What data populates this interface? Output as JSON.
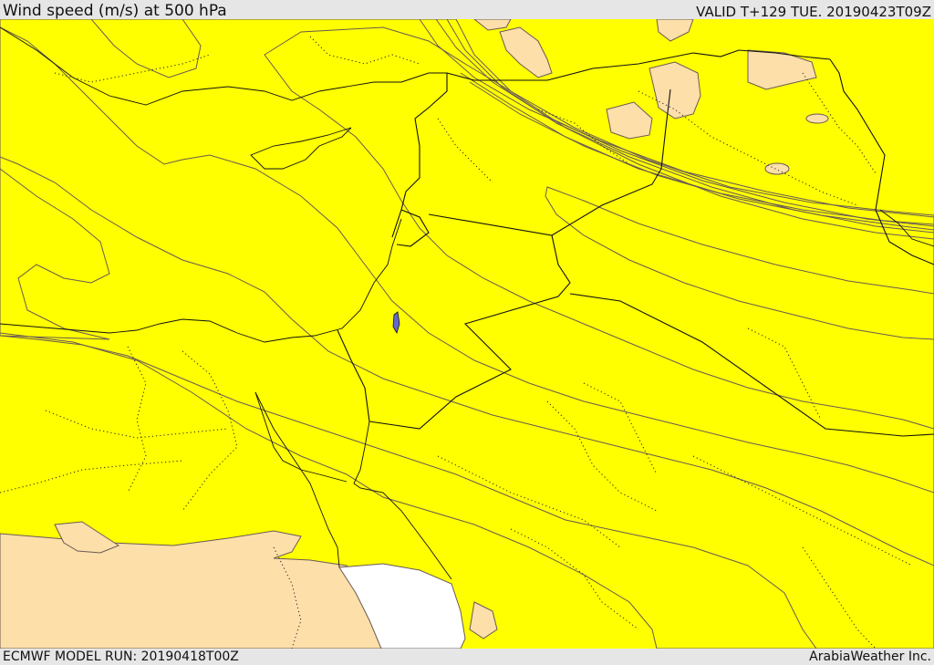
{
  "header": {
    "title": "Wind speed (m/s) at 500 hPa",
    "valid": "VALID T+129 TUE. 20190423T09Z"
  },
  "footer": {
    "model_run": "ECMWF MODEL RUN: 20190418T00Z",
    "credit": "ArabiaWeather Inc."
  },
  "map": {
    "field": "wind speed at 500 hPa",
    "palette": {
      "white": "#ffffff",
      "beige": "#fddfa9",
      "yellow": "#ffff00",
      "yellow_orange": "#ffdd00",
      "light_orange": "#ffc000",
      "orange": "#ffa000",
      "dark_orange": "#ff8800",
      "red_orange": "#ff6600",
      "red": "#ff4400"
    }
  }
}
